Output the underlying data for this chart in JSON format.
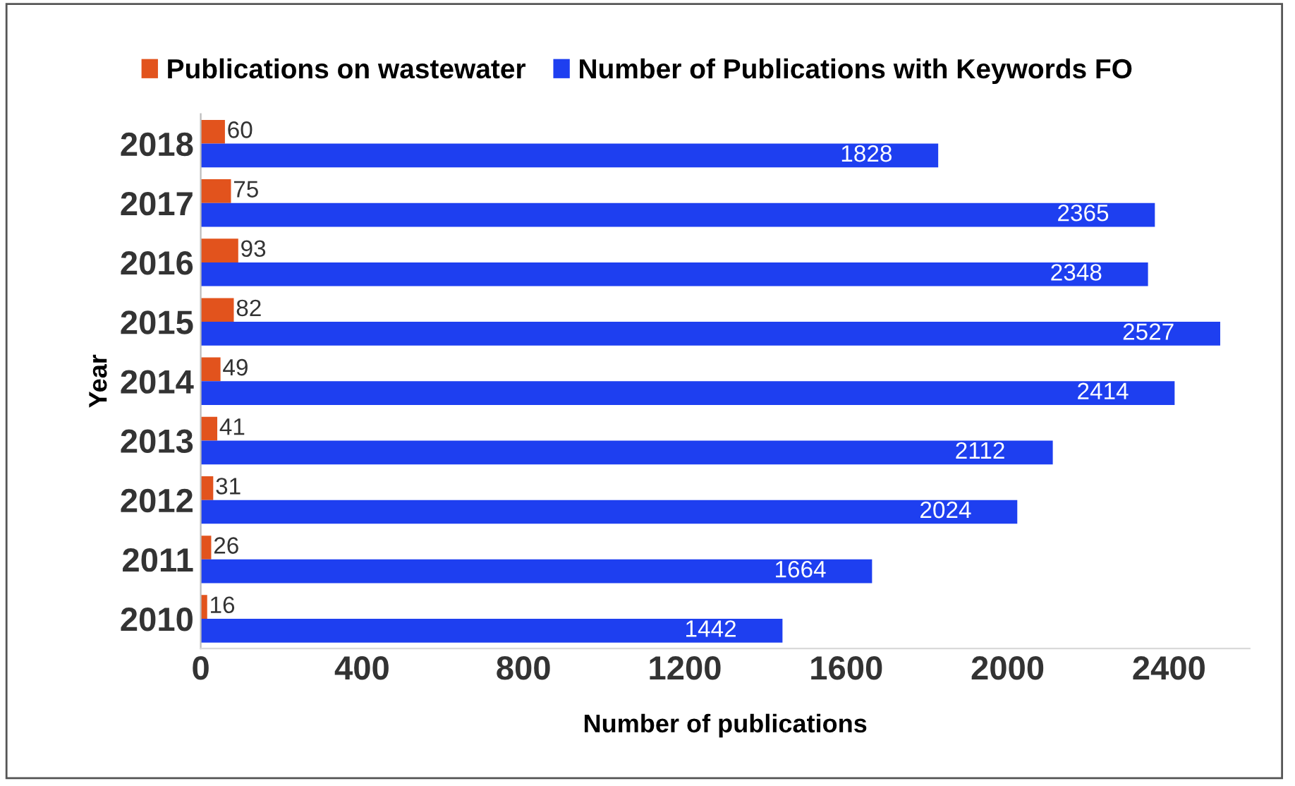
{
  "chart_data": {
    "type": "bar",
    "orientation": "horizontal",
    "xlabel": "Number of publications",
    "ylabel": "Year",
    "categories": [
      "2018",
      "2017",
      "2016",
      "2015",
      "2014",
      "2013",
      "2012",
      "2011",
      "2010"
    ],
    "series": [
      {
        "name": "Publications on wastewater",
        "color": "#e2531d",
        "values": [
          60,
          75,
          93,
          82,
          49,
          41,
          31,
          26,
          16
        ]
      },
      {
        "name": "Number of Publications with Keywords FO",
        "color": "#1e3ff0",
        "values": [
          1828,
          2365,
          2348,
          2527,
          2414,
          2112,
          2024,
          1664,
          1442
        ]
      }
    ],
    "xlim": [
      0,
      2600
    ],
    "xticks": [
      0,
      400,
      800,
      1200,
      1600,
      2000,
      2400
    ],
    "data_labels": true,
    "legend": "top left",
    "grid": false
  }
}
